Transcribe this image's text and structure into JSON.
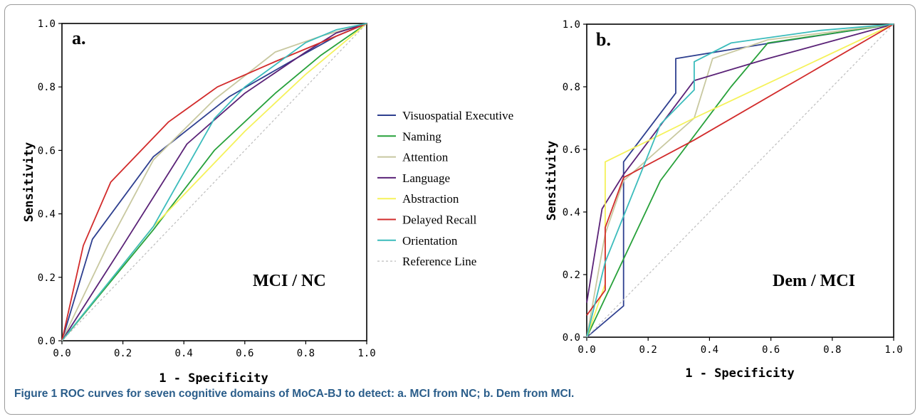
{
  "caption": {
    "figure_label": "Figure 1",
    "text": "ROC curves for seven cognitive domains of MoCA-BJ to detect: a. MCI from NC; b. Dem from MCI."
  },
  "colors": {
    "Visuospatial Executive": "#2e3f8f",
    "Naming": "#27a13a",
    "Attention": "#c8c8a0",
    "Language": "#5a2277",
    "Abstraction": "#f5f25a",
    "Delayed Recall": "#d22b2b",
    "Orientation": "#3bbcbc",
    "Reference Line": "#bdbdbd"
  },
  "legend": [
    "Visuospatial Executive",
    "Naming",
    "Attention",
    "Language",
    "Abstraction",
    "Delayed Recall",
    "Orientation",
    "Reference Line"
  ],
  "chart_data": [
    {
      "type": "line",
      "panel_label": "a.",
      "group_label": "MCI / NC",
      "xlabel": "1 - Specificity",
      "ylabel": "Sensitivity",
      "xlim": [
        0,
        1
      ],
      "ylim": [
        0,
        1
      ],
      "xticks": [
        "0.0",
        "0.2",
        "0.4",
        "0.6",
        "0.8",
        "1.0"
      ],
      "yticks": [
        "0.0",
        "0.2",
        "0.4",
        "0.6",
        "0.8",
        "1.0"
      ],
      "series": [
        {
          "name": "Visuospatial Executive",
          "x": [
            0,
            0.1,
            0.3,
            0.55,
            0.75,
            0.9,
            1
          ],
          "y": [
            0,
            0.32,
            0.58,
            0.77,
            0.88,
            0.96,
            1
          ]
        },
        {
          "name": "Naming",
          "x": [
            0,
            0.3,
            0.5,
            0.7,
            0.85,
            1
          ],
          "y": [
            0,
            0.35,
            0.6,
            0.78,
            0.9,
            1
          ]
        },
        {
          "name": "Attention",
          "x": [
            0,
            0.15,
            0.3,
            0.5,
            0.7,
            0.85,
            1
          ],
          "y": [
            0,
            0.3,
            0.57,
            0.76,
            0.91,
            0.96,
            1
          ]
        },
        {
          "name": "Language",
          "x": [
            0,
            0.2,
            0.41,
            0.6,
            0.8,
            0.9,
            1
          ],
          "y": [
            0,
            0.3,
            0.62,
            0.78,
            0.91,
            0.97,
            1
          ]
        },
        {
          "name": "Abstraction",
          "x": [
            0,
            0.3,
            0.6,
            0.8,
            1
          ],
          "y": [
            0,
            0.36,
            0.66,
            0.84,
            1
          ]
        },
        {
          "name": "Delayed Recall",
          "x": [
            0,
            0.07,
            0.16,
            0.35,
            0.51,
            0.7,
            1
          ],
          "y": [
            0,
            0.3,
            0.5,
            0.69,
            0.8,
            0.88,
            1
          ]
        },
        {
          "name": "Orientation",
          "x": [
            0,
            0.3,
            0.5,
            0.6,
            0.8,
            0.9,
            1
          ],
          "y": [
            0,
            0.36,
            0.7,
            0.8,
            0.94,
            0.98,
            1
          ]
        },
        {
          "name": "Reference Line",
          "x": [
            0,
            1
          ],
          "y": [
            0,
            1
          ]
        }
      ]
    },
    {
      "type": "line",
      "panel_label": "b.",
      "group_label": "Dem / MCI",
      "xlabel": "1 - Specificity",
      "ylabel": "Sensitivity",
      "xlim": [
        0,
        1
      ],
      "ylim": [
        0,
        1
      ],
      "xticks": [
        "0.0",
        "0.2",
        "0.4",
        "0.6",
        "0.8",
        "1.0"
      ],
      "yticks": [
        "0.0",
        "0.2",
        "0.4",
        "0.6",
        "0.8",
        "1.0"
      ],
      "series": [
        {
          "name": "Visuospatial Executive",
          "x": [
            0,
            0.12,
            0.12,
            0.29,
            0.29,
            0.6,
            1
          ],
          "y": [
            0,
            0.1,
            0.56,
            0.78,
            0.89,
            0.94,
            1
          ]
        },
        {
          "name": "Naming",
          "x": [
            0,
            0.24,
            0.47,
            0.59,
            1
          ],
          "y": [
            0,
            0.5,
            0.8,
            0.94,
            1
          ]
        },
        {
          "name": "Attention",
          "x": [
            0,
            0.06,
            0.12,
            0.35,
            0.41,
            0.59,
            1
          ],
          "y": [
            0,
            0.33,
            0.5,
            0.7,
            0.89,
            0.95,
            1
          ]
        },
        {
          "name": "Language",
          "x": [
            0,
            0.05,
            0.12,
            0.35,
            0.59,
            1
          ],
          "y": [
            0.11,
            0.41,
            0.52,
            0.82,
            0.89,
            1
          ]
        },
        {
          "name": "Abstraction",
          "x": [
            0,
            0.06,
            0.06,
            0.35,
            1
          ],
          "y": [
            0,
            0.17,
            0.56,
            0.7,
            1
          ]
        },
        {
          "name": "Delayed Recall",
          "x": [
            0,
            0.06,
            0.06,
            0.12,
            0.35,
            1
          ],
          "y": [
            0.07,
            0.15,
            0.35,
            0.51,
            0.63,
            1
          ]
        },
        {
          "name": "Orientation",
          "x": [
            0,
            0.06,
            0.24,
            0.35,
            0.35,
            0.47,
            0.76,
            1
          ],
          "y": [
            0,
            0.24,
            0.68,
            0.79,
            0.88,
            0.94,
            0.98,
            1
          ]
        },
        {
          "name": "Reference Line",
          "x": [
            0,
            1
          ],
          "y": [
            0,
            1
          ]
        }
      ]
    }
  ]
}
